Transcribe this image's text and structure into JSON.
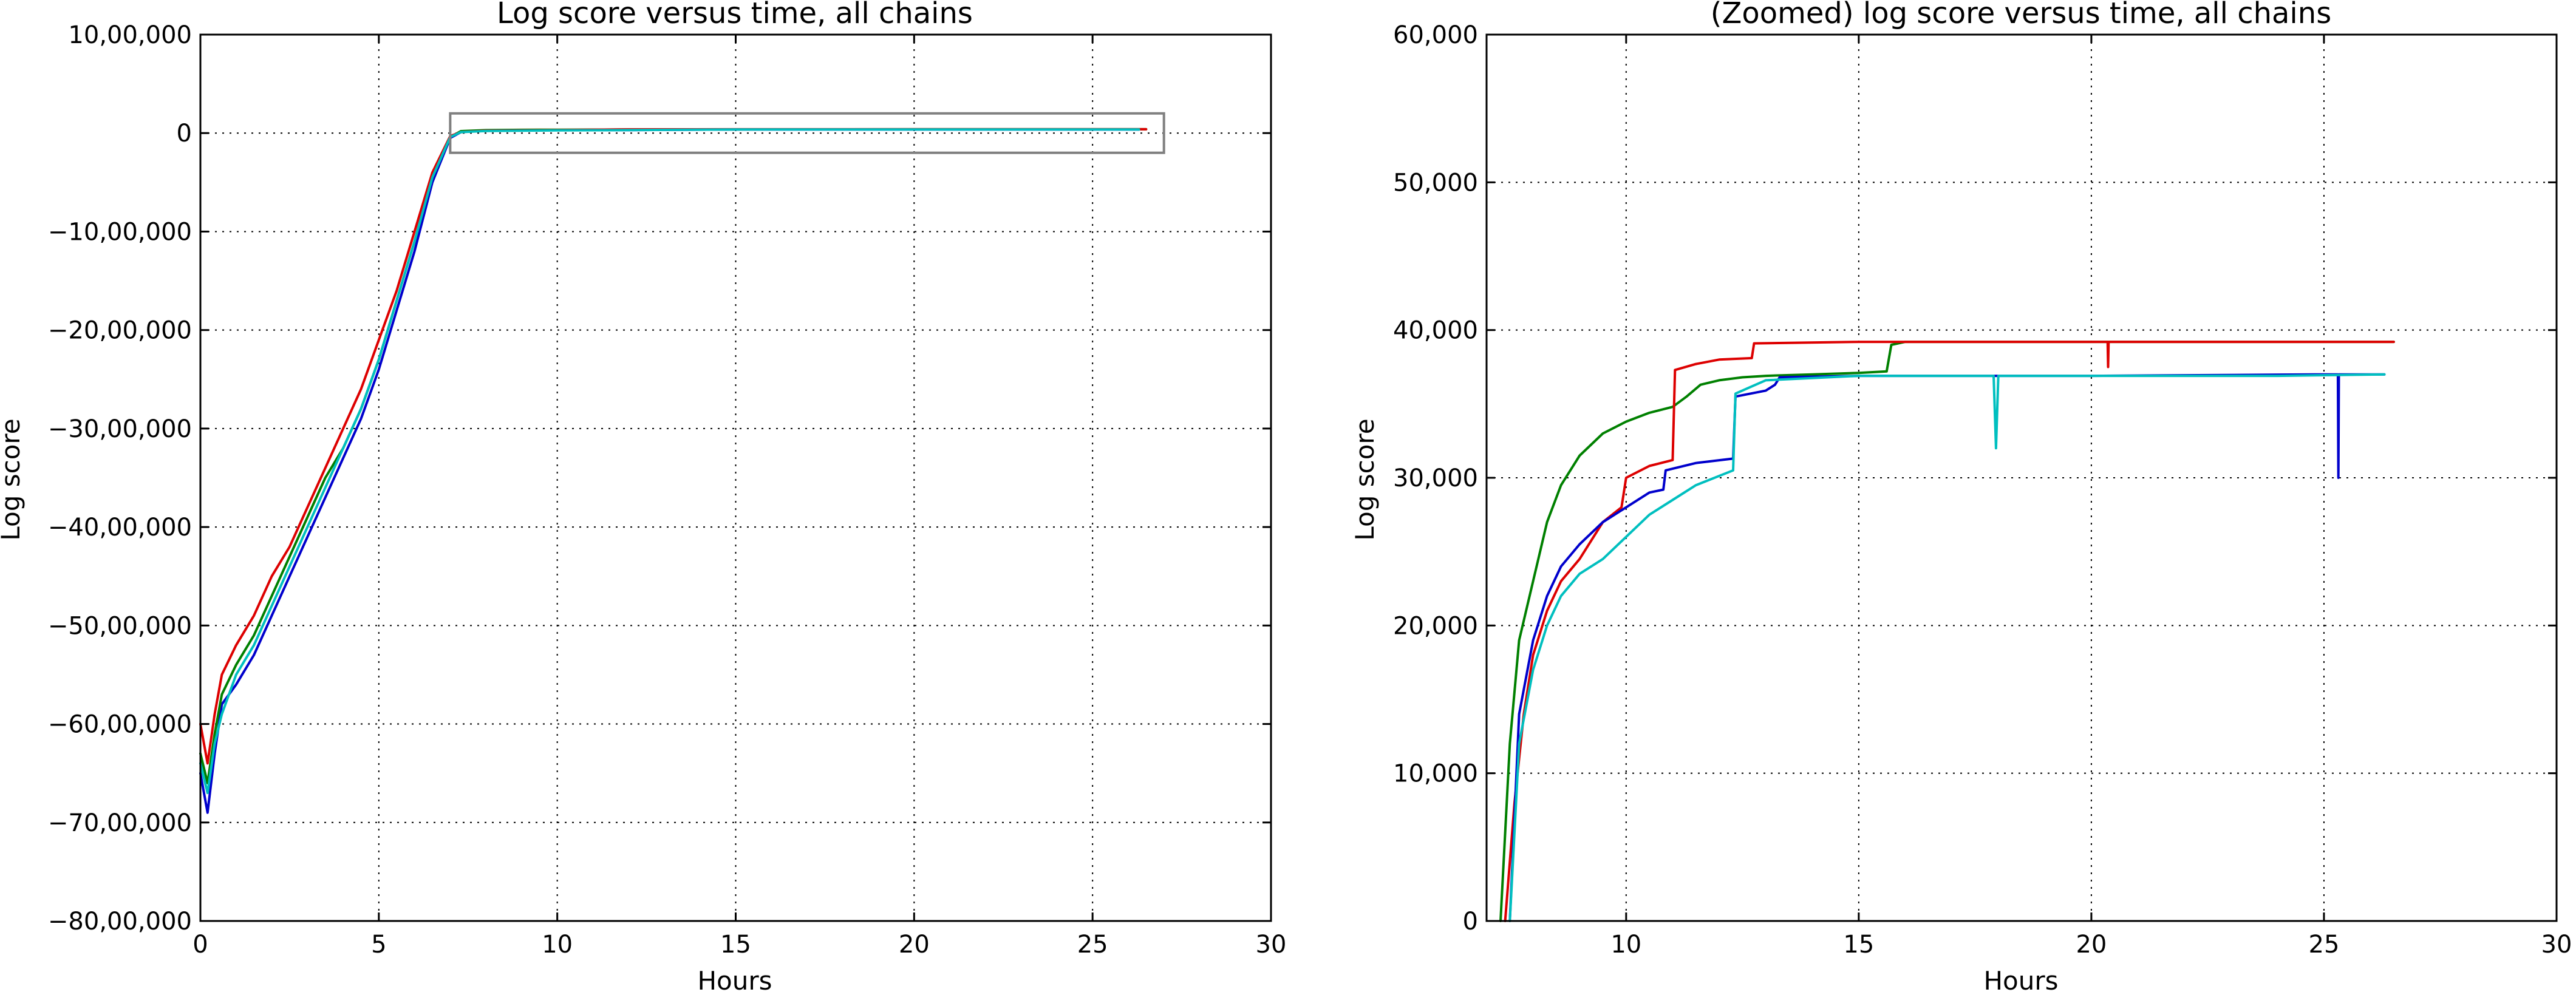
{
  "chart_data": [
    {
      "type": "line",
      "title": "Log score versus time, all chains",
      "xlabel": "Hours",
      "ylabel": "Log score",
      "xlim": [
        0,
        30
      ],
      "ylim": [
        -8000000,
        1000000
      ],
      "xticks": [
        0,
        5,
        10,
        15,
        20,
        25,
        30
      ],
      "xtick_labels": [
        "0",
        "5",
        "10",
        "15",
        "20",
        "25",
        "30"
      ],
      "yticks": [
        1000000,
        0,
        -1000000,
        -2000000,
        -3000000,
        -4000000,
        -5000000,
        -6000000,
        -7000000,
        -8000000
      ],
      "ytick_labels": [
        "10,00,000",
        "0",
        "−10,00,000",
        "−20,00,000",
        "−30,00,000",
        "−40,00,000",
        "−50,00,000",
        "−60,00,000",
        "−70,00,000",
        "−80,00,000"
      ],
      "grid": true,
      "zoom_region": {
        "x": [
          7,
          27
        ],
        "y": [
          -200000,
          200000
        ],
        "color": "#808080"
      },
      "series": [
        {
          "color": "#0000cc",
          "x": [
            0,
            0.2,
            0.4,
            0.6,
            1.0,
            1.5,
            2.0,
            2.5,
            3.0,
            3.5,
            4.0,
            4.5,
            5.0,
            5.5,
            6.0,
            6.5,
            7.0,
            7.3,
            8.0,
            9.0,
            10,
            12,
            15,
            20,
            25,
            26.3
          ],
          "y": [
            -6500000,
            -6900000,
            -6300000,
            -5800000,
            -5600000,
            -5300000,
            -4900000,
            -4500000,
            -4100000,
            -3700000,
            -3300000,
            -2900000,
            -2400000,
            -1800000,
            -1200000,
            -500000,
            -50000,
            10000,
            27000,
            28000,
            30000,
            31000,
            37000,
            37000,
            37000,
            37000
          ]
        },
        {
          "color": "#008000",
          "x": [
            0,
            0.2,
            0.4,
            0.6,
            1.0,
            1.5,
            2.0,
            2.5,
            3.0,
            3.5,
            4.0,
            4.5,
            5.0,
            5.5,
            6.0,
            6.5,
            7.0,
            7.3,
            8.0,
            9.0,
            10,
            12,
            15,
            20,
            25,
            26.5
          ],
          "y": [
            -6300000,
            -6600000,
            -6100000,
            -5700000,
            -5400000,
            -5100000,
            -4700000,
            -4300000,
            -3900000,
            -3500000,
            -3200000,
            -2800000,
            -2300000,
            -1700000,
            -1100000,
            -450000,
            -40000,
            20000,
            30000,
            33000,
            34000,
            36800,
            38000,
            39200,
            39200,
            39200
          ]
        },
        {
          "color": "#dd0000",
          "x": [
            0,
            0.2,
            0.4,
            0.6,
            1.0,
            1.5,
            2.0,
            2.5,
            3.0,
            3.5,
            4.0,
            4.5,
            5.0,
            5.5,
            6.0,
            6.5,
            7.0,
            7.3,
            8.0,
            9.0,
            10,
            12,
            15,
            20,
            25,
            26.5
          ],
          "y": [
            -6000000,
            -6400000,
            -5900000,
            -5500000,
            -5200000,
            -4900000,
            -4500000,
            -4200000,
            -3800000,
            -3400000,
            -3000000,
            -2600000,
            -2100000,
            -1600000,
            -1000000,
            -400000,
            -30000,
            10000,
            24000,
            27000,
            30000,
            37800,
            39200,
            39200,
            39200,
            39200
          ]
        },
        {
          "color": "#00bfbf",
          "x": [
            0,
            0.2,
            0.4,
            0.6,
            1.0,
            1.5,
            2.0,
            2.5,
            3.0,
            3.5,
            4.0,
            4.5,
            5.0,
            5.5,
            6.0,
            6.5,
            7.0,
            7.3,
            8.0,
            9.0,
            10,
            12,
            15,
            20,
            25,
            26.3
          ],
          "y": [
            -6400000,
            -6700000,
            -6200000,
            -5900000,
            -5500000,
            -5200000,
            -4800000,
            -4400000,
            -4000000,
            -3600000,
            -3200000,
            -2800000,
            -2300000,
            -1700000,
            -1100000,
            -450000,
            -40000,
            10000,
            22000,
            25000,
            27000,
            30500,
            37000,
            37000,
            36900,
            37000
          ]
        }
      ]
    },
    {
      "type": "line",
      "title": "(Zoomed) log score versus time, all chains",
      "xlabel": "Hours",
      "ylabel": "Log score",
      "xlim": [
        7,
        30
      ],
      "ylim": [
        0,
        60000
      ],
      "xticks": [
        10,
        15,
        20,
        25,
        30
      ],
      "xtick_labels": [
        "10",
        "15",
        "20",
        "25",
        "30"
      ],
      "yticks": [
        0,
        10000,
        20000,
        30000,
        40000,
        50000,
        60000
      ],
      "ytick_labels": [
        "0",
        "10,000",
        "20,000",
        "30,000",
        "40,000",
        "50,000",
        "60,000"
      ],
      "grid": true,
      "series": [
        {
          "color": "#008000",
          "x": [
            7.3,
            7.5,
            7.7,
            8.0,
            8.3,
            8.6,
            9.0,
            9.5,
            10.0,
            10.5,
            11.0,
            11.3,
            11.6,
            12.0,
            12.5,
            13.0,
            14.0,
            15.0,
            15.6,
            15.7,
            16.0,
            18.0,
            20.0,
            22.0,
            24.0,
            25.0,
            26.5
          ],
          "y": [
            0,
            12000,
            19000,
            23000,
            27000,
            29500,
            31500,
            33000,
            33800,
            34400,
            34800,
            35500,
            36300,
            36600,
            36800,
            36900,
            37000,
            37100,
            37200,
            39000,
            39200,
            39200,
            39200,
            39200,
            39200,
            39200,
            39200
          ]
        },
        {
          "color": "#dd0000",
          "x": [
            7.4,
            7.6,
            7.8,
            8.0,
            8.3,
            8.6,
            9.0,
            9.5,
            9.9,
            10.0,
            10.5,
            11.0,
            11.05,
            11.5,
            12.0,
            12.7,
            12.75,
            15.0,
            18.0,
            20.0,
            20.35,
            20.36,
            20.37,
            21.0,
            24.0,
            26.5
          ],
          "y": [
            0,
            8000,
            14000,
            18000,
            21000,
            23000,
            24500,
            27000,
            28000,
            30000,
            30800,
            31200,
            37300,
            37700,
            38000,
            38100,
            39100,
            39200,
            39200,
            39200,
            39200,
            37500,
            39200,
            39200,
            39200,
            39200
          ]
        },
        {
          "color": "#0000cc",
          "x": [
            7.5,
            7.7,
            8.0,
            8.3,
            8.6,
            9.0,
            9.5,
            10.0,
            10.5,
            10.8,
            10.85,
            11.5,
            12.3,
            12.35,
            13.0,
            13.2,
            13.3,
            15.0,
            20.0,
            25.0,
            25.3,
            25.31,
            25.32,
            26.3
          ],
          "y": [
            0,
            14000,
            19000,
            22000,
            24000,
            25500,
            27000,
            28000,
            29000,
            29200,
            30500,
            31000,
            31300,
            35500,
            35900,
            36300,
            36800,
            36900,
            36900,
            37000,
            37000,
            30000,
            37000,
            37000
          ]
        },
        {
          "color": "#00bfbf",
          "x": [
            7.5,
            7.7,
            8.0,
            8.3,
            8.6,
            9.0,
            9.5,
            10.0,
            10.5,
            11.0,
            11.5,
            12.3,
            12.35,
            13.0,
            15.0,
            17.9,
            17.95,
            18.0,
            20.0,
            24.0,
            26.3
          ],
          "y": [
            0,
            12000,
            17000,
            20000,
            22000,
            23500,
            24500,
            26000,
            27500,
            28500,
            29500,
            30500,
            35700,
            36600,
            36900,
            36900,
            32000,
            36900,
            36900,
            36900,
            37000
          ]
        }
      ]
    }
  ]
}
